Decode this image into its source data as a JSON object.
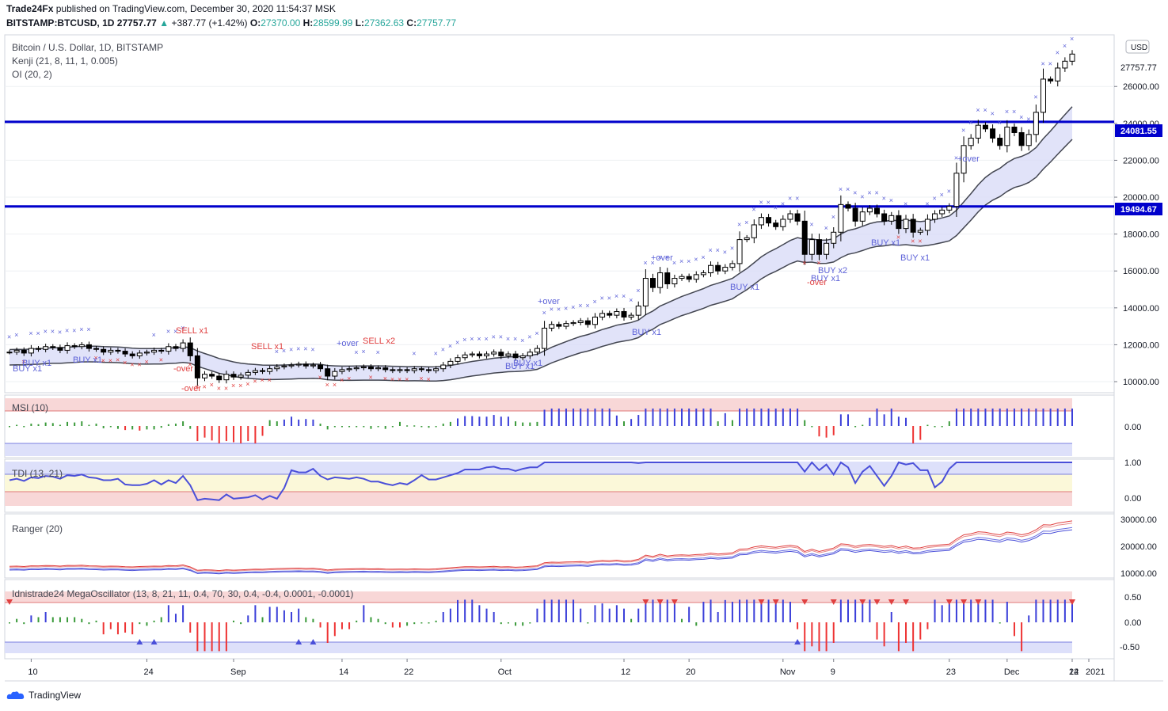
{
  "header": {
    "publisher": "Trade24Fx",
    "publish_text": "published on TradingView.com, December 30, 2020 11:54:37 MSK",
    "symbol": "BITSTAMP:BTCUSD, 1D",
    "last": "27757.77",
    "change": "+387.77 (+1.42%)",
    "open_label": "O:",
    "open": "27370.00",
    "high_label": "H:",
    "high": "28599.99",
    "low_label": "L:",
    "low": "27362.63",
    "close_label": "C:",
    "close": "27757.77"
  },
  "legend": {
    "title": "Bitcoin / U.S. Dollar, 1D, BITSTAMP",
    "kenji": "Kenji (21, 8, 11, 1, 0.005)",
    "oi": "OI (20, 2)"
  },
  "currency_badge": "USD",
  "price_axis": [
    "26000.00",
    "24000.00",
    "22000.00",
    "20000.00",
    "18000.00",
    "16000.00",
    "14000.00",
    "12000.00",
    "10000.00"
  ],
  "price_labels": {
    "last": "27757.77",
    "level_upper": "24081.55",
    "level_lower": "19494.67"
  },
  "horizontal_levels": [
    24081.55,
    19494.67
  ],
  "time_axis": [
    "10",
    "24",
    "Sep",
    "14",
    "22",
    "Oct",
    "12",
    "20",
    "Nov",
    "9",
    "23",
    "Dec",
    "14",
    "22",
    "2021"
  ],
  "annotations": {
    "buy": [
      "BUY x1",
      "BUY x1",
      "BUY x1",
      "BUY x1",
      "BUY x1",
      "BUY x1",
      "BUY x1",
      "BUY x2",
      "BUY x1",
      "BUY x1",
      "BUY x1"
    ],
    "sell": [
      "SELL x1",
      "SELL x1",
      "SELL x2"
    ],
    "over_minus": [
      "-over",
      "-over",
      "-over"
    ],
    "over_plus": [
      "+over",
      "+over",
      "+over",
      "+over"
    ]
  },
  "panes": {
    "msi": {
      "title": "MSI (10)",
      "axis": [
        "0.00"
      ]
    },
    "tdi": {
      "title": "TDI (13, 21)",
      "axis": [
        "1.00",
        "0.00"
      ]
    },
    "ranger": {
      "title": "Ranger (20)",
      "axis": [
        "30000.00",
        "20000.00",
        "10000.00"
      ]
    },
    "mega": {
      "title": "Idnistrade24 MegaOscillator (13, 8, 21, 11, 0.4, 70, 30, 0.4, -0.4, 0.0001, -0.0001)",
      "axis": [
        "0.50",
        "0.00",
        "-0.50"
      ]
    }
  },
  "colors": {
    "up": "#ffffff",
    "down": "#000000",
    "level": "#0000cc",
    "band_fill": "#d9dcf7",
    "band_fill_green": "#d6f2d6",
    "band_fill_red": "#f4dcdc",
    "buy_text": "#5d62d8",
    "sell_text": "#e04040",
    "msi_pos": "#3b3fd9",
    "msi_neg": "#e33",
    "msi_mid": "#3a9a3a",
    "pink": "#f8d7d7",
    "lavender": "#dde0fa",
    "yellow": "#fbf8d9"
  },
  "chart_data": {
    "type": "candlestick",
    "series_name": "BITSTAMP:BTCUSD, 1D",
    "ylim": [
      9400,
      28800
    ],
    "closes": [
      11600,
      11700,
      11550,
      11800,
      11750,
      11900,
      11850,
      11700,
      11950,
      11900,
      12000,
      11800,
      11750,
      11600,
      11700,
      11650,
      11500,
      11400,
      11550,
      11600,
      11700,
      11650,
      11900,
      11800,
      12100,
      11400,
      10200,
      10400,
      10300,
      10100,
      10400,
      10250,
      10350,
      10500,
      10600,
      10550,
      10700,
      10800,
      10850,
      10900,
      10950,
      10850,
      10900,
      10700,
      10300,
      10550,
      10650,
      10700,
      10750,
      10800,
      10700,
      10750,
      10650,
      10600,
      10650,
      10600,
      10700,
      10650,
      10600,
      10700,
      10900,
      11100,
      11300,
      11450,
      11500,
      11400,
      11500,
      11600,
      11400,
      11500,
      11300,
      11400,
      11600,
      11800,
      12900,
      13100,
      13000,
      13150,
      13200,
      13300,
      13100,
      13500,
      13700,
      13600,
      13800,
      13500,
      13600,
      14100,
      15600,
      15100,
      15900,
      15300,
      15600,
      15700,
      15550,
      15800,
      15900,
      16300,
      16000,
      16200,
      16400,
      17700,
      17800,
      18500,
      18900,
      18600,
      18400,
      18800,
      19100,
      18700,
      16900,
      17700,
      16900,
      17500,
      18100,
      19600,
      19400,
      18700,
      19200,
      19400,
      19100,
      18700,
      19000,
      18300,
      18800,
      18100,
      18200,
      18800,
      19100,
      19300,
      19500,
      21300,
      22800,
      23200,
      23900,
      23700,
      23200,
      22800,
      23800,
      23500,
      22800,
      23400,
      24600,
      26400,
      26300,
      27000,
      27370,
      27757
    ]
  }
}
